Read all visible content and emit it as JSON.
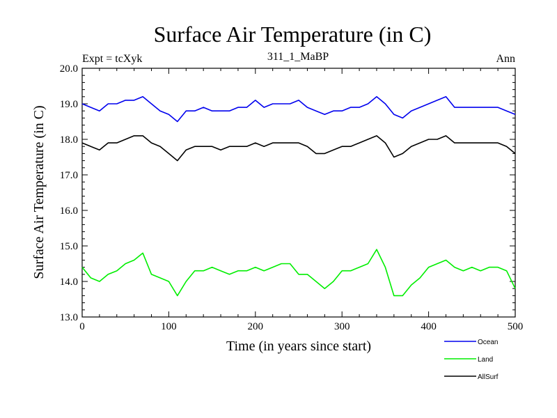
{
  "chart_data": {
    "type": "line",
    "title": "Surface Air Temperature (in C)",
    "subtitle": "311_1_MaBP",
    "left_label": "Expt = tcXyk",
    "right_label": "Ann",
    "xlabel": "Time (in years since start)",
    "ylabel": "Surface Air Temperature (in C)",
    "xlim": [
      0,
      500
    ],
    "ylim": [
      13.0,
      20.0
    ],
    "xticks": [
      0,
      100,
      200,
      300,
      400,
      500
    ],
    "xtick_labels": [
      "0",
      "100",
      "200",
      "300",
      "400",
      "500"
    ],
    "yticks": [
      13,
      14,
      15,
      16,
      17,
      18,
      19,
      20
    ],
    "ytick_labels": [
      "13.0",
      "14.0",
      "15.0",
      "16.0",
      "17.0",
      "18.0",
      "19.0",
      "20.0"
    ],
    "grid": false,
    "legend_position": "bottom-right",
    "series": [
      {
        "name": "Ocean",
        "color": "#0000ee",
        "x": [
          0,
          10,
          20,
          30,
          40,
          50,
          60,
          70,
          80,
          90,
          100,
          110,
          120,
          130,
          140,
          150,
          160,
          170,
          180,
          190,
          200,
          210,
          220,
          230,
          240,
          250,
          260,
          270,
          280,
          290,
          300,
          310,
          320,
          330,
          340,
          350,
          360,
          370,
          380,
          390,
          400,
          410,
          420,
          430,
          440,
          450,
          460,
          470,
          480,
          490,
          500
        ],
        "values": [
          19.0,
          18.9,
          18.8,
          19.0,
          19.0,
          19.1,
          19.1,
          19.2,
          19.0,
          18.8,
          18.7,
          18.5,
          18.8,
          18.8,
          18.9,
          18.8,
          18.8,
          18.8,
          18.9,
          18.9,
          19.1,
          18.9,
          19.0,
          19.0,
          19.0,
          19.1,
          18.9,
          18.8,
          18.7,
          18.8,
          18.8,
          18.9,
          18.9,
          19.0,
          19.2,
          19.0,
          18.7,
          18.6,
          18.8,
          18.9,
          19.0,
          19.1,
          19.2,
          18.9,
          18.9,
          18.9,
          18.9,
          18.9,
          18.9,
          18.8,
          18.7
        ]
      },
      {
        "name": "Land",
        "color": "#00ee00",
        "x": [
          0,
          10,
          20,
          30,
          40,
          50,
          60,
          70,
          80,
          90,
          100,
          110,
          120,
          130,
          140,
          150,
          160,
          170,
          180,
          190,
          200,
          210,
          220,
          230,
          240,
          250,
          260,
          270,
          280,
          290,
          300,
          310,
          320,
          330,
          340,
          350,
          360,
          370,
          380,
          390,
          400,
          410,
          420,
          430,
          440,
          450,
          460,
          470,
          480,
          490,
          500
        ],
        "values": [
          14.4,
          14.1,
          14.0,
          14.2,
          14.3,
          14.5,
          14.6,
          14.8,
          14.2,
          14.1,
          14.0,
          13.6,
          14.0,
          14.3,
          14.3,
          14.4,
          14.3,
          14.2,
          14.3,
          14.3,
          14.4,
          14.3,
          14.4,
          14.5,
          14.5,
          14.2,
          14.2,
          14.0,
          13.8,
          14.0,
          14.3,
          14.3,
          14.4,
          14.5,
          14.9,
          14.4,
          13.6,
          13.6,
          13.9,
          14.1,
          14.4,
          14.5,
          14.6,
          14.4,
          14.3,
          14.4,
          14.3,
          14.4,
          14.4,
          14.3,
          13.8
        ]
      },
      {
        "name": "AllSurf",
        "color": "#000000",
        "x": [
          0,
          10,
          20,
          30,
          40,
          50,
          60,
          70,
          80,
          90,
          100,
          110,
          120,
          130,
          140,
          150,
          160,
          170,
          180,
          190,
          200,
          210,
          220,
          230,
          240,
          250,
          260,
          270,
          280,
          290,
          300,
          310,
          320,
          330,
          340,
          350,
          360,
          370,
          380,
          390,
          400,
          410,
          420,
          430,
          440,
          450,
          460,
          470,
          480,
          490,
          500
        ],
        "values": [
          17.9,
          17.8,
          17.7,
          17.9,
          17.9,
          18.0,
          18.1,
          18.1,
          17.9,
          17.8,
          17.6,
          17.4,
          17.7,
          17.8,
          17.8,
          17.8,
          17.7,
          17.8,
          17.8,
          17.8,
          17.9,
          17.8,
          17.9,
          17.9,
          17.9,
          17.9,
          17.8,
          17.6,
          17.6,
          17.7,
          17.8,
          17.8,
          17.9,
          18.0,
          18.1,
          17.9,
          17.5,
          17.6,
          17.8,
          17.9,
          18.0,
          18.0,
          18.1,
          17.9,
          17.9,
          17.9,
          17.9,
          17.9,
          17.9,
          17.8,
          17.6
        ]
      }
    ]
  }
}
